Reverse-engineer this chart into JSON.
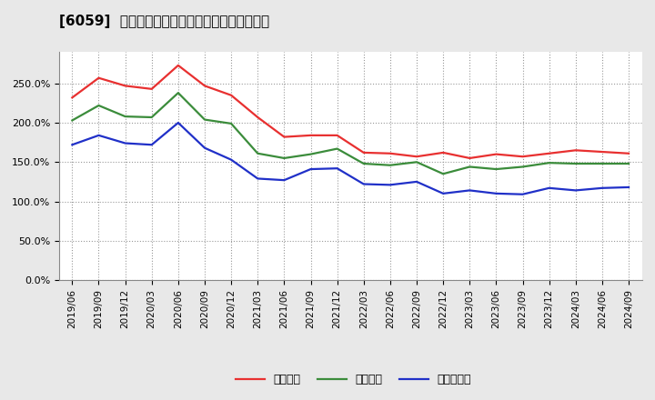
{
  "title": "[6059]  流動比率、当座比率、現預金比率の推移",
  "x_labels": [
    "2019/06",
    "2019/09",
    "2019/12",
    "2020/03",
    "2020/06",
    "2020/09",
    "2020/12",
    "2021/03",
    "2021/06",
    "2021/09",
    "2021/12",
    "2022/03",
    "2022/06",
    "2022/09",
    "2022/12",
    "2023/03",
    "2023/06",
    "2023/09",
    "2023/12",
    "2024/03",
    "2024/06",
    "2024/09"
  ],
  "ryudo": [
    2.32,
    2.57,
    2.47,
    2.43,
    2.73,
    2.47,
    2.35,
    2.07,
    1.82,
    1.84,
    1.84,
    1.62,
    1.61,
    1.57,
    1.62,
    1.55,
    1.6,
    1.57,
    1.61,
    1.65,
    1.63,
    1.61
  ],
  "toza": [
    2.03,
    2.22,
    2.08,
    2.07,
    2.38,
    2.04,
    1.99,
    1.61,
    1.55,
    1.6,
    1.67,
    1.48,
    1.46,
    1.5,
    1.35,
    1.44,
    1.41,
    1.44,
    1.49,
    1.48,
    1.48,
    1.48
  ],
  "genkin": [
    1.72,
    1.84,
    1.74,
    1.72,
    2.0,
    1.68,
    1.53,
    1.29,
    1.27,
    1.41,
    1.42,
    1.22,
    1.21,
    1.25,
    1.1,
    1.14,
    1.1,
    1.09,
    1.17,
    1.14,
    1.17,
    1.18
  ],
  "ryudo_color": "#e83030",
  "toza_color": "#3b8c3b",
  "genkin_color": "#2030c8",
  "ylim_min": 0.0,
  "ylim_max": 2.9,
  "yticks": [
    0.0,
    0.5,
    1.0,
    1.5,
    2.0,
    2.5
  ],
  "ytick_labels": [
    "0.0%",
    "50.0%",
    "100.0%",
    "150.0%",
    "200.0%",
    "250.0%"
  ],
  "legend_labels": [
    "流動比率",
    "当座比率",
    "現預金比率"
  ],
  "bg_color": "#e8e8e8",
  "plot_bg_color": "#ffffff",
  "grid_color": "#999999"
}
